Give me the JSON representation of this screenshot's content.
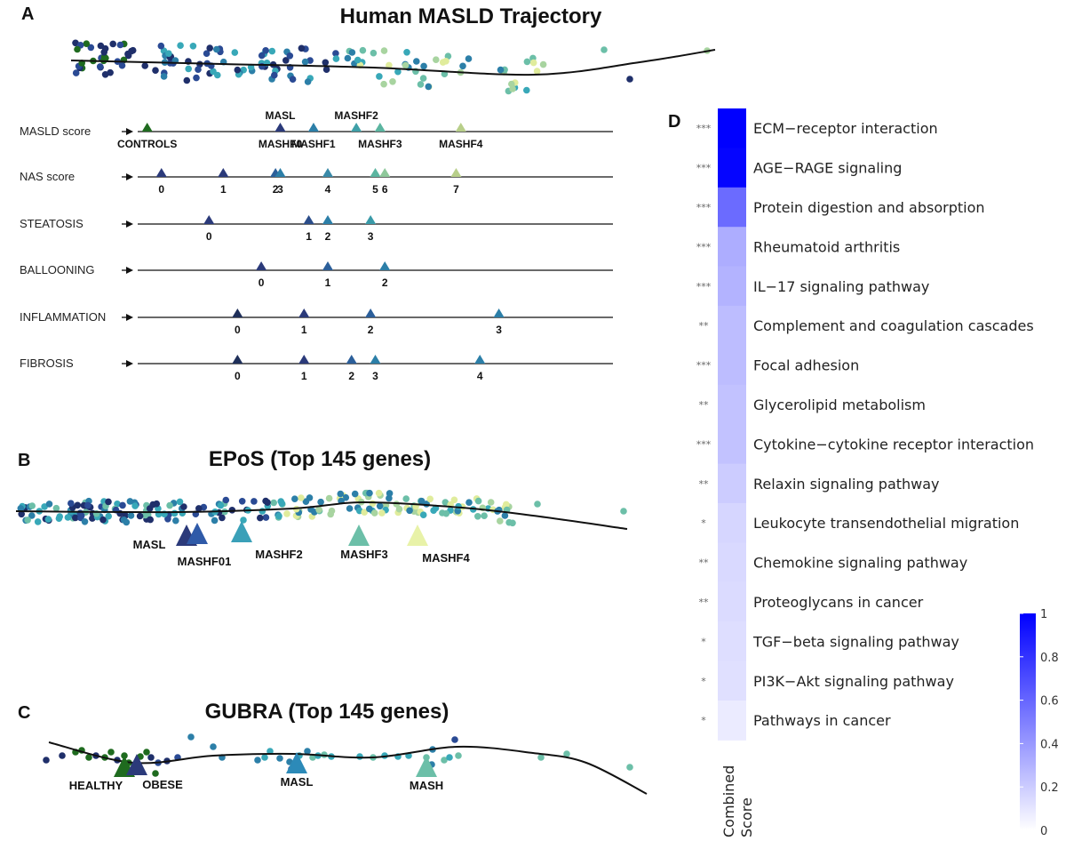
{
  "chart_data": [
    {
      "panel": "A",
      "type": "scatter",
      "title": "Human MASLD Trajectory",
      "trajectory_line": true,
      "score_rows": [
        {
          "label": "MASLD score",
          "markers": [
            {
              "text": "CONTROLS",
              "pos": 0.02,
              "color": "#1f6b1f",
              "label_side": "below"
            },
            {
              "text": "MASL",
              "pos": 0.3,
              "color": "#2b3a7a",
              "label_side": "above"
            },
            {
              "text": "MASHF0",
              "pos": 0.3,
              "color": "#2b3a7a",
              "label_side": "below",
              "no_marker": true
            },
            {
              "text": "MASHF1",
              "pos": 0.37,
              "color": "#2c7fa8",
              "label_side": "below"
            },
            {
              "text": "MASHF2",
              "pos": 0.46,
              "color": "#3fa0a8",
              "label_side": "above"
            },
            {
              "text": "MASHF3",
              "pos": 0.51,
              "color": "#5bb5a0",
              "label_side": "below"
            },
            {
              "text": "MASHF4",
              "pos": 0.68,
              "color": "#b8cf8a",
              "label_side": "below"
            }
          ]
        },
        {
          "label": "NAS score",
          "markers": [
            {
              "text": "0",
              "pos": 0.05,
              "color": "#2b3a7a"
            },
            {
              "text": "1",
              "pos": 0.18,
              "color": "#2b3a7a"
            },
            {
              "text": "2",
              "pos": 0.29,
              "color": "#2c5f9a"
            },
            {
              "text": "3",
              "pos": 0.3,
              "color": "#2c7fa8"
            },
            {
              "text": "4",
              "pos": 0.4,
              "color": "#3a8aa8"
            },
            {
              "text": "5",
              "pos": 0.5,
              "color": "#5bb5a0"
            },
            {
              "text": "6",
              "pos": 0.52,
              "color": "#8ec89a"
            },
            {
              "text": "7",
              "pos": 0.67,
              "color": "#b8cf8a"
            }
          ]
        },
        {
          "label": "STEATOSIS",
          "markers": [
            {
              "text": "0",
              "pos": 0.15,
              "color": "#2b3a7a"
            },
            {
              "text": "1",
              "pos": 0.36,
              "color": "#2b4d8a"
            },
            {
              "text": "2",
              "pos": 0.4,
              "color": "#2c7fa8"
            },
            {
              "text": "3",
              "pos": 0.49,
              "color": "#3a9aa8"
            }
          ]
        },
        {
          "label": "BALLOONING",
          "markers": [
            {
              "text": "0",
              "pos": 0.26,
              "color": "#2b3a7a"
            },
            {
              "text": "1",
              "pos": 0.4,
              "color": "#2c5f9a"
            },
            {
              "text": "2",
              "pos": 0.52,
              "color": "#2c7fa8"
            }
          ]
        },
        {
          "label": "INFLAMMATION",
          "markers": [
            {
              "text": "0",
              "pos": 0.21,
              "color": "#1f2f5a"
            },
            {
              "text": "1",
              "pos": 0.35,
              "color": "#2b3a7a"
            },
            {
              "text": "2",
              "pos": 0.49,
              "color": "#2c5f9a"
            },
            {
              "text": "3",
              "pos": 0.76,
              "color": "#2c7fa8"
            }
          ]
        },
        {
          "label": "FIBROSIS",
          "markers": [
            {
              "text": "0",
              "pos": 0.21,
              "color": "#1f2f5a"
            },
            {
              "text": "1",
              "pos": 0.35,
              "color": "#2b3a7a"
            },
            {
              "text": "2",
              "pos": 0.45,
              "color": "#2c5f9a"
            },
            {
              "text": "3",
              "pos": 0.5,
              "color": "#2c7fa8"
            },
            {
              "text": "4",
              "pos": 0.72,
              "color": "#2c7fa8"
            }
          ]
        }
      ]
    },
    {
      "panel": "B",
      "type": "scatter",
      "title": "EPoS (Top 145 genes)",
      "trajectory_line": true,
      "stage_markers": [
        {
          "text": "MASL",
          "color": "#2b3a7a"
        },
        {
          "text": "MASHF01",
          "color": "#2f5aa8"
        },
        {
          "text": "MASHF2",
          "color": "#3aa0b8"
        },
        {
          "text": "MASHF3",
          "color": "#6cbfa8"
        },
        {
          "text": "MASHF4",
          "color": "#e8f2a8"
        }
      ]
    },
    {
      "panel": "C",
      "type": "scatter",
      "title": "GUBRA (Top 145 genes)",
      "trajectory_line": true,
      "stage_markers": [
        {
          "text": "HEALTHY",
          "color": "#1f6b1f"
        },
        {
          "text": "OBESE",
          "color": "#2b3a7a"
        },
        {
          "text": "MASL",
          "color": "#2c8ab8"
        },
        {
          "text": "MASH",
          "color": "#6cbfa8"
        }
      ]
    },
    {
      "panel": "D",
      "type": "heatmap",
      "xlabel": "Combined\nScore",
      "colorbar": {
        "ticks": [
          0,
          0.2,
          0.4,
          0.6,
          0.8,
          1
        ],
        "min_color": "#ffffff",
        "max_color": "#0000ff"
      },
      "rows": [
        {
          "term": "ECM−receptor interaction",
          "value": 1.0,
          "sig": "***"
        },
        {
          "term": "AGE−RAGE signaling",
          "value": 0.98,
          "sig": "***"
        },
        {
          "term": "Protein digestion and absorption",
          "value": 0.58,
          "sig": "***"
        },
        {
          "term": "Rheumatoid arthritis",
          "value": 0.32,
          "sig": "***"
        },
        {
          "term": "IL−17 signaling pathway",
          "value": 0.3,
          "sig": "***"
        },
        {
          "term": "Complement and coagulation cascades",
          "value": 0.26,
          "sig": "**"
        },
        {
          "term": "Focal adhesion",
          "value": 0.26,
          "sig": "***"
        },
        {
          "term": "Glycerolipid metabolism",
          "value": 0.24,
          "sig": "**"
        },
        {
          "term": "Cytokine−cytokine receptor interaction",
          "value": 0.24,
          "sig": "***"
        },
        {
          "term": "Relaxin signaling pathway",
          "value": 0.2,
          "sig": "**"
        },
        {
          "term": "Leukocyte transendothelial migration",
          "value": 0.16,
          "sig": "*"
        },
        {
          "term": "Chemokine signaling pathway",
          "value": 0.15,
          "sig": "**"
        },
        {
          "term": "Proteoglycans in cancer",
          "value": 0.14,
          "sig": "**"
        },
        {
          "term": "TGF−beta signaling pathway",
          "value": 0.13,
          "sig": "*"
        },
        {
          "term": "PI3K−Akt signaling pathway",
          "value": 0.12,
          "sig": "*"
        },
        {
          "term": "Pathways in cancer",
          "value": 0.08,
          "sig": "*"
        }
      ]
    }
  ],
  "colors": {
    "palette": [
      "#1f2f6a",
      "#2a4a94",
      "#2c7fa8",
      "#38a8b8",
      "#6cbfa8",
      "#a8d4a0",
      "#e0ec9c",
      "#1f6b1f"
    ],
    "line": "#111111"
  }
}
